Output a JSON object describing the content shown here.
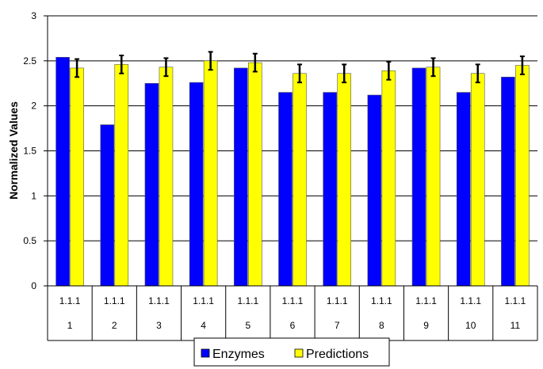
{
  "chart_data": {
    "type": "bar",
    "title": "",
    "xlabel": "",
    "ylabel": "Normalized  Values",
    "ylim": [
      0,
      3
    ],
    "yticks": [
      "0",
      "0.5",
      "1",
      "1.5",
      "2",
      "2.5",
      "3"
    ],
    "grid": true,
    "legend_position": "bottom",
    "categories": [
      [
        "1.1.1",
        "1"
      ],
      [
        "1.1.1",
        "2"
      ],
      [
        "1.1.1",
        "3"
      ],
      [
        "1.1.1",
        "4"
      ],
      [
        "1.1.1",
        "5"
      ],
      [
        "1.1.1",
        "6"
      ],
      [
        "1.1.1",
        "7"
      ],
      [
        "1.1.1",
        "8"
      ],
      [
        "1.1.1",
        "9"
      ],
      [
        "1.1.1",
        "10"
      ],
      [
        "1.1.1",
        "11"
      ]
    ],
    "series": [
      {
        "name": "Enzymes",
        "color": "#0000ff",
        "values": [
          2.54,
          1.79,
          2.25,
          2.26,
          2.42,
          2.15,
          2.15,
          2.12,
          2.42,
          2.15,
          2.32
        ]
      },
      {
        "name": "Predictions",
        "color": "#ffff00",
        "values": [
          2.42,
          2.46,
          2.43,
          2.5,
          2.48,
          2.36,
          2.36,
          2.39,
          2.43,
          2.36,
          2.45
        ],
        "error": [
          0.1,
          0.1,
          0.1,
          0.1,
          0.1,
          0.1,
          0.1,
          0.1,
          0.1,
          0.1,
          0.1
        ]
      }
    ]
  }
}
